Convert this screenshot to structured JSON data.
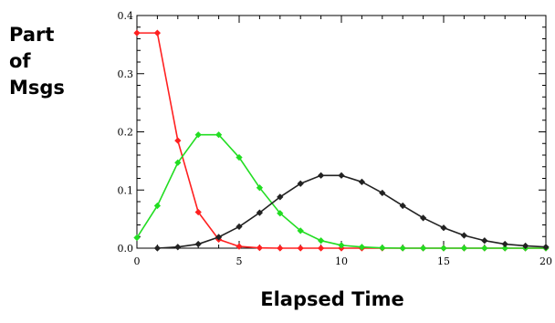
{
  "chart_data": {
    "type": "line",
    "ylabel_lines": [
      "Part",
      "of",
      "Msgs"
    ],
    "xlabel": "Elapsed Time",
    "xlim": [
      0,
      20
    ],
    "ylim": [
      0,
      0.4
    ],
    "xticks": [
      0,
      5,
      10,
      15,
      20
    ],
    "xtick_labels": [
      "0",
      "5",
      "10",
      "15",
      "20"
    ],
    "yticks": [
      0.0,
      0.1,
      0.2,
      0.3,
      0.4
    ],
    "ytick_labels": [
      "0.0",
      "0.1",
      "0.2",
      "0.3",
      "0.4"
    ],
    "grid": false,
    "series": [
      {
        "color": "#ff2020",
        "x": [
          0,
          1,
          2,
          3,
          4,
          5,
          6,
          7,
          8,
          9,
          10,
          11,
          12,
          13,
          14,
          15,
          16,
          17,
          18,
          19,
          20
        ],
        "y": [
          0.37,
          0.37,
          0.185,
          0.062,
          0.015,
          0.003,
          0.0005,
          0,
          0,
          0,
          0,
          0,
          0,
          0,
          0,
          0,
          0,
          0,
          0,
          0,
          0
        ]
      },
      {
        "color": "#22dd22",
        "x": [
          0,
          1,
          2,
          3,
          4,
          5,
          6,
          7,
          8,
          9,
          10,
          11,
          12,
          13,
          14,
          15,
          16,
          17,
          18,
          19,
          20
        ],
        "y": [
          0.018,
          0.073,
          0.147,
          0.195,
          0.195,
          0.156,
          0.104,
          0.06,
          0.03,
          0.013,
          0.005,
          0.002,
          0.0005,
          0,
          0,
          0,
          0,
          0,
          0,
          0,
          0
        ]
      },
      {
        "color": "#222222",
        "x": [
          1,
          2,
          3,
          4,
          5,
          6,
          7,
          8,
          9,
          10,
          11,
          12,
          13,
          14,
          15,
          16,
          17,
          18,
          19,
          20
        ],
        "y": [
          0.0,
          0.002,
          0.007,
          0.019,
          0.037,
          0.061,
          0.088,
          0.111,
          0.125,
          0.125,
          0.114,
          0.095,
          0.073,
          0.052,
          0.035,
          0.022,
          0.013,
          0.007,
          0.004,
          0.002
        ]
      }
    ]
  }
}
